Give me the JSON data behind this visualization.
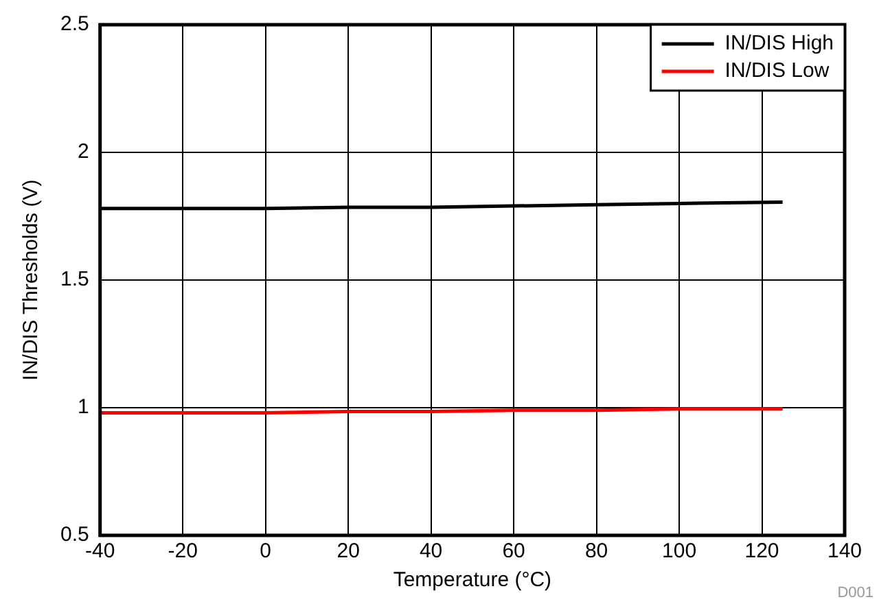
{
  "chart_data": {
    "type": "line",
    "xlabel": "Temperature (°C)",
    "ylabel": "IN/DIS Thresholds (V)",
    "x": [
      -40,
      -20,
      0,
      20,
      40,
      60,
      80,
      100,
      125
    ],
    "series": [
      {
        "name": "IN/DIS High",
        "color": "#000000",
        "values": [
          1.78,
          1.78,
          1.78,
          1.785,
          1.785,
          1.79,
          1.795,
          1.8,
          1.805
        ]
      },
      {
        "name": "IN/DIS Low",
        "color": "#ff0000",
        "values": [
          0.98,
          0.98,
          0.98,
          0.985,
          0.985,
          0.99,
          0.99,
          0.995,
          0.995
        ]
      }
    ],
    "xlim": [
      -40,
      140
    ],
    "xticks": [
      -40,
      -20,
      0,
      20,
      40,
      60,
      80,
      100,
      120,
      140
    ],
    "ylim": [
      0.5,
      2.5
    ],
    "yticks": [
      0.5,
      1,
      1.5,
      2,
      2.5
    ],
    "grid": true,
    "legend": "top right",
    "marker": "none",
    "line_style": "solid",
    "annotations": [
      "D001"
    ]
  }
}
